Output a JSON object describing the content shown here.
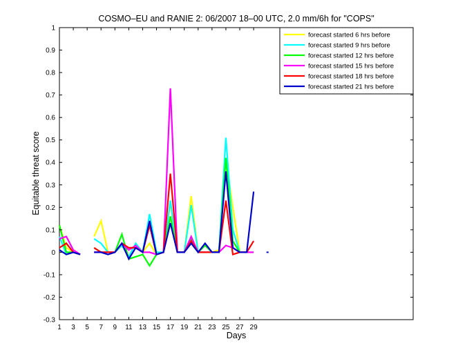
{
  "chart_data": {
    "type": "line",
    "title": "COSMO–EU and RANIE 2: 06/2007 18–00 UTC, 2.0 mm/6h for \"COPS\"",
    "xlabel": "Days",
    "ylabel": "Equitable threat score",
    "xlim": [
      1,
      52
    ],
    "ylim": [
      -0.3,
      1
    ],
    "x_ticks": [
      1,
      3,
      5,
      7,
      9,
      11,
      13,
      15,
      17,
      19,
      21,
      23,
      25,
      27,
      29
    ],
    "y_ticks": [
      -0.3,
      -0.2,
      -0.1,
      0,
      0.1,
      0.2,
      0.3,
      0.4,
      0.5,
      0.6,
      0.7,
      0.8,
      0.9,
      1
    ],
    "grid": false,
    "legend_position": "top-right",
    "series": [
      {
        "name": "forecast started 6 hrs before",
        "color": "#ffff00",
        "values": [
          [
            1,
            0.12
          ],
          [
            2,
            0.02
          ],
          [
            3,
            0
          ],
          [
            4,
            -0.01
          ],
          [
            null,
            null
          ],
          [
            6,
            0.07
          ],
          [
            7,
            0.14
          ],
          [
            8,
            0
          ],
          [
            9,
            0
          ],
          [
            10,
            0.03
          ],
          [
            11,
            -0.02
          ],
          [
            12,
            0.04
          ],
          [
            13,
            0
          ],
          [
            14,
            0.04
          ],
          [
            15,
            -0.01
          ],
          [
            16,
            0
          ],
          [
            17,
            0.22
          ],
          [
            18,
            0
          ],
          [
            19,
            0
          ],
          [
            20,
            0.25
          ],
          [
            21,
            0
          ],
          [
            22,
            0
          ],
          [
            23,
            0
          ],
          [
            24,
            0.01
          ],
          [
            25,
            0.42
          ],
          [
            26,
            0.2
          ],
          [
            27,
            0
          ],
          [
            28,
            0
          ]
        ]
      },
      {
        "name": "forecast started 9 hrs before",
        "color": "#00ffff",
        "values": [
          [
            1,
            0.07
          ],
          [
            2,
            -0.01
          ],
          [
            3,
            0
          ],
          [
            4,
            -0.01
          ],
          [
            null,
            null
          ],
          [
            6,
            0.06
          ],
          [
            7,
            0.04
          ],
          [
            8,
            0
          ],
          [
            9,
            0
          ],
          [
            10,
            0.03
          ],
          [
            11,
            -0.02
          ],
          [
            12,
            0.04
          ],
          [
            13,
            0
          ],
          [
            14,
            0.17
          ],
          [
            15,
            0
          ],
          [
            16,
            0
          ],
          [
            17,
            0.23
          ],
          [
            18,
            0
          ],
          [
            19,
            0
          ],
          [
            20,
            0.21
          ],
          [
            21,
            0
          ],
          [
            22,
            0
          ],
          [
            23,
            0
          ],
          [
            24,
            0
          ],
          [
            25,
            0.51
          ],
          [
            26,
            0.1
          ],
          [
            27,
            0
          ],
          [
            28,
            0
          ]
        ]
      },
      {
        "name": "forecast started 12 hrs before",
        "color": "#00ff00",
        "values": [
          [
            1,
            0.12
          ],
          [
            2,
            0
          ],
          [
            3,
            0
          ],
          [
            4,
            -0.01
          ],
          [
            null,
            null
          ],
          [
            6,
            0.02
          ],
          [
            7,
            0
          ],
          [
            8,
            0
          ],
          [
            9,
            0
          ],
          [
            10,
            0.08
          ],
          [
            11,
            -0.03
          ],
          [
            12,
            -0.02
          ],
          [
            13,
            -0.01
          ],
          [
            14,
            -0.06
          ],
          [
            15,
            -0.01
          ],
          [
            16,
            0
          ],
          [
            17,
            0.16
          ],
          [
            18,
            0
          ],
          [
            19,
            0
          ],
          [
            20,
            0.06
          ],
          [
            21,
            0
          ],
          [
            22,
            0.03
          ],
          [
            23,
            0
          ],
          [
            24,
            0
          ],
          [
            25,
            0.42
          ],
          [
            26,
            0.05
          ],
          [
            27,
            0
          ],
          [
            28,
            0
          ]
        ]
      },
      {
        "name": "forecast started 15 hrs before",
        "color": "#ff00ff",
        "values": [
          [
            1,
            0.06
          ],
          [
            2,
            0.07
          ],
          [
            3,
            0.01
          ],
          [
            4,
            -0.01
          ],
          [
            null,
            null
          ],
          [
            6,
            0
          ],
          [
            7,
            0
          ],
          [
            8,
            0
          ],
          [
            9,
            0
          ],
          [
            10,
            0.04
          ],
          [
            11,
            0.01
          ],
          [
            12,
            0.03
          ],
          [
            13,
            0
          ],
          [
            14,
            0
          ],
          [
            15,
            -0.01
          ],
          [
            16,
            0
          ],
          [
            17,
            0.73
          ],
          [
            18,
            0
          ],
          [
            19,
            0
          ],
          [
            20,
            0.07
          ],
          [
            21,
            0
          ],
          [
            22,
            0
          ],
          [
            23,
            0
          ],
          [
            24,
            0
          ],
          [
            25,
            0.03
          ],
          [
            26,
            0.02
          ],
          [
            27,
            0
          ],
          [
            28,
            0
          ],
          [
            29,
            0
          ]
        ]
      },
      {
        "name": "forecast started 18 hrs before",
        "color": "#ff0000",
        "values": [
          [
            1,
            0.02
          ],
          [
            2,
            0.04
          ],
          [
            3,
            0
          ],
          [
            4,
            -0.01
          ],
          [
            null,
            null
          ],
          [
            6,
            0.02
          ],
          [
            7,
            0
          ],
          [
            8,
            0
          ],
          [
            9,
            0
          ],
          [
            10,
            0.04
          ],
          [
            11,
            0.02
          ],
          [
            12,
            0.02
          ],
          [
            13,
            0
          ],
          [
            14,
            0.12
          ],
          [
            15,
            -0.01
          ],
          [
            16,
            0
          ],
          [
            17,
            0.35
          ],
          [
            18,
            0
          ],
          [
            19,
            0
          ],
          [
            20,
            0.05
          ],
          [
            21,
            0
          ],
          [
            22,
            0
          ],
          [
            23,
            0
          ],
          [
            24,
            0
          ],
          [
            25,
            0.23
          ],
          [
            26,
            -0.01
          ],
          [
            27,
            0
          ],
          [
            28,
            0
          ],
          [
            29,
            0.05
          ]
        ]
      },
      {
        "name": "forecast started 21 hrs before",
        "color": "#0000cc",
        "values": [
          [
            1,
            0.01
          ],
          [
            2,
            -0.01
          ],
          [
            3,
            0
          ],
          [
            4,
            -0.01
          ],
          [
            null,
            null
          ],
          [
            6,
            0
          ],
          [
            7,
            0
          ],
          [
            8,
            -0.01
          ],
          [
            9,
            0
          ],
          [
            10,
            0.04
          ],
          [
            11,
            -0.03
          ],
          [
            12,
            0.02
          ],
          [
            13,
            0
          ],
          [
            14,
            0.14
          ],
          [
            15,
            -0.01
          ],
          [
            16,
            0
          ],
          [
            17,
            0.13
          ],
          [
            18,
            0
          ],
          [
            19,
            0
          ],
          [
            20,
            0.04
          ],
          [
            21,
            0
          ],
          [
            22,
            0.04
          ],
          [
            23,
            0
          ],
          [
            24,
            0
          ],
          [
            25,
            0.36
          ],
          [
            26,
            0.02
          ],
          [
            27,
            0
          ],
          [
            28,
            0
          ],
          [
            29,
            0.27
          ],
          [
            null,
            null
          ],
          [
            31,
            0
          ]
        ]
      }
    ]
  }
}
